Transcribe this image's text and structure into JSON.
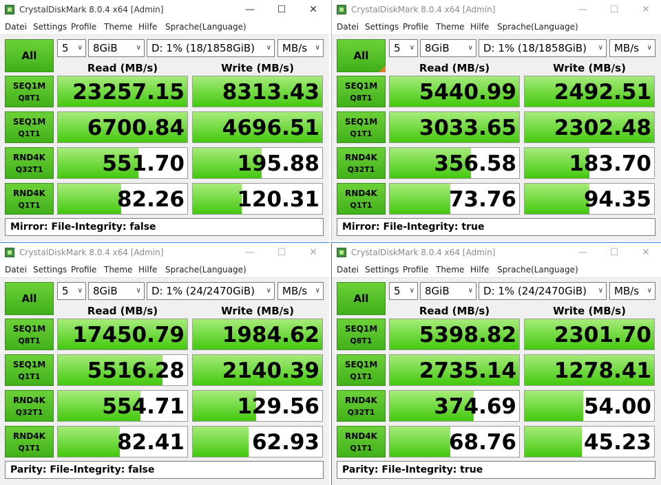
{
  "colors": {
    "accent_green": "#4cbd1f",
    "bar_green_light": "#a6ec7a",
    "bar_green_dark": "#43c80e",
    "selected_marker": "#e07d1e"
  },
  "icons": {
    "app": "crystaldiskmark-icon",
    "minimize": "minimize-icon",
    "maximize": "maximize-icon",
    "close": "close-icon",
    "dropdown": "chevron-down-icon"
  },
  "windows": [
    {
      "title": "CrystalDiskMark 8.0.4 x64 [Admin]",
      "window_buttons": {
        "minimize": "—",
        "maximize": "☐",
        "close": "✕"
      },
      "menu": [
        "Datei",
        "Settings",
        "Profile",
        "Theme",
        "Hilfe",
        "Sprache(Language)"
      ],
      "all_label": "All",
      "count": "5",
      "size": "8GiB",
      "drive": "D: 1% (18/1858GiB)",
      "unit": "MB/s",
      "read_header": "Read (MB/s)",
      "write_header": "Write (MB/s)",
      "tests": [
        {
          "line1": "SEQ1M",
          "line2": "Q8T1",
          "read": "23257.15",
          "write": "8313.43",
          "read_fill": 1.0,
          "write_fill": 1.0
        },
        {
          "line1": "SEQ1M",
          "line2": "Q1T1",
          "read": "6700.84",
          "write": "4696.51",
          "read_fill": 1.0,
          "write_fill": 1.0
        },
        {
          "line1": "RND4K",
          "line2": "Q32T1",
          "read": "551.70",
          "write": "195.88",
          "read_fill": 0.62,
          "write_fill": 0.53
        },
        {
          "line1": "RND4K",
          "line2": "Q1T1",
          "read": "82.26",
          "write": "120.31",
          "read_fill": 0.49,
          "write_fill": 0.38
        }
      ],
      "comment": "Mirror: File-Integrity: false"
    },
    {
      "title": "CrystalDiskMark 8.0.4 x64 [Admin]",
      "window_buttons": {
        "minimize": "—",
        "maximize": "☐",
        "close": "✕"
      },
      "menu": [
        "Datei",
        "Settings",
        "Profile",
        "Theme",
        "Hilfe",
        "Sprache(Language)"
      ],
      "all_label": "All",
      "count": "5",
      "size": "8GiB",
      "drive": "D: 1% (18/1858GiB)",
      "unit": "MB/s",
      "read_header": "Read (MB/s)",
      "write_header": "Write (MB/s)",
      "tests": [
        {
          "line1": "SEQ1M",
          "line2": "Q8T1",
          "read": "5440.99",
          "write": "2492.51",
          "read_fill": 1.0,
          "write_fill": 1.0
        },
        {
          "line1": "SEQ1M",
          "line2": "Q1T1",
          "read": "3033.65",
          "write": "2302.48",
          "read_fill": 1.0,
          "write_fill": 1.0
        },
        {
          "line1": "RND4K",
          "line2": "Q32T1",
          "read": "356.58",
          "write": "183.70",
          "read_fill": 0.63,
          "write_fill": 0.5
        },
        {
          "line1": "RND4K",
          "line2": "Q1T1",
          "read": "73.76",
          "write": "94.35",
          "read_fill": 0.47,
          "write_fill": 0.5
        }
      ],
      "comment": "Mirror: File-Integrity: true"
    },
    {
      "title": "CrystalDiskMark 8.0.4 x64 [Admin]",
      "window_buttons": {
        "minimize": "—",
        "maximize": "☐",
        "close": "✕"
      },
      "menu": [
        "Datei",
        "Settings",
        "Profile",
        "Theme",
        "Hilfe",
        "Sprache(Language)"
      ],
      "all_label": "All",
      "count": "5",
      "size": "8GiB",
      "drive": "D: 1% (24/2470GiB)",
      "unit": "MB/s",
      "read_header": "Read (MB/s)",
      "write_header": "Write (MB/s)",
      "tests": [
        {
          "line1": "SEQ1M",
          "line2": "Q8T1",
          "read": "17450.79",
          "write": "1984.62",
          "read_fill": 1.0,
          "write_fill": 1.0
        },
        {
          "line1": "SEQ1M",
          "line2": "Q1T1",
          "read": "5516.28",
          "write": "2140.39",
          "read_fill": 0.81,
          "write_fill": 1.0
        },
        {
          "line1": "RND4K",
          "line2": "Q32T1",
          "read": "554.71",
          "write": "129.56",
          "read_fill": 0.64,
          "write_fill": 0.49
        },
        {
          "line1": "RND4K",
          "line2": "Q1T1",
          "read": "82.41",
          "write": "62.93",
          "read_fill": 0.48,
          "write_fill": 0.43
        }
      ],
      "comment": "Parity: File-Integrity: false"
    },
    {
      "title": "CrystalDiskMark 8.0.4 x64 [Admin]",
      "window_buttons": {
        "minimize": "—",
        "maximize": "☐",
        "close": "✕"
      },
      "menu": [
        "Datei",
        "Settings",
        "Profile",
        "Theme",
        "Hilfe",
        "Sprache(Language)"
      ],
      "all_label": "All",
      "count": "5",
      "size": "8GiB",
      "drive": "D: 1% (24/2470GiB)",
      "unit": "MB/s",
      "read_header": "Read (MB/s)",
      "write_header": "Write (MB/s)",
      "tests": [
        {
          "line1": "SEQ1M",
          "line2": "Q8T1",
          "read": "5398.82",
          "write": "2301.70",
          "read_fill": 1.0,
          "write_fill": 1.0
        },
        {
          "line1": "SEQ1M",
          "line2": "Q1T1",
          "read": "2735.14",
          "write": "1278.41",
          "read_fill": 1.0,
          "write_fill": 1.0
        },
        {
          "line1": "RND4K",
          "line2": "Q32T1",
          "read": "374.69",
          "write": "54.00",
          "read_fill": 0.65,
          "write_fill": 0.45
        },
        {
          "line1": "RND4K",
          "line2": "Q1T1",
          "read": "68.76",
          "write": "45.23",
          "read_fill": 0.47,
          "write_fill": 0.44
        }
      ],
      "comment": "Parity: File-Integrity: true"
    }
  ]
}
